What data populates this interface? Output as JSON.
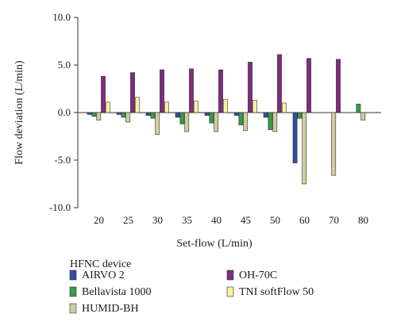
{
  "chart_data": {
    "type": "bar",
    "categories": [
      "20",
      "25",
      "30",
      "35",
      "40",
      "45",
      "50",
      "60",
      "70",
      "80"
    ],
    "xlabel": "Set-flow (L/min)",
    "ylabel": "Flow deviation (L/min)",
    "ylim": [
      -10,
      10
    ],
    "yticks": [
      "10.0",
      "5.0",
      "0.0",
      "-5.0",
      "-10.0"
    ],
    "ytick_values": [
      10,
      5,
      0,
      -5,
      -10
    ],
    "grid": false,
    "legend_title": "HFNC device",
    "legend_position": "bottom",
    "series": [
      {
        "name": "AIRVO 2",
        "color": "#2f4fa0",
        "values": [
          -0.2,
          -0.2,
          -0.3,
          -0.5,
          -0.3,
          -0.3,
          -0.5,
          -5.3,
          null,
          null
        ]
      },
      {
        "name": "Bellavista 1000",
        "color": "#3a9a46",
        "values": [
          -0.4,
          -0.5,
          -0.6,
          -1.2,
          -1.1,
          -1.3,
          -1.8,
          -0.6,
          null,
          0.9
        ]
      },
      {
        "name": "HUMID-BH",
        "color": "#cfcda0",
        "values": [
          -0.8,
          -1.0,
          -2.3,
          -2.0,
          -2.0,
          -1.9,
          -2.0,
          -7.5,
          -6.6,
          -0.8
        ]
      },
      {
        "name": "OH-70C",
        "color": "#7e2d80",
        "values": [
          3.8,
          4.2,
          4.5,
          4.6,
          4.5,
          5.3,
          6.1,
          5.7,
          5.6,
          null
        ]
      },
      {
        "name": "TNI softFlow 50",
        "color": "#f7f39a",
        "values": [
          1.1,
          1.6,
          1.1,
          1.2,
          1.4,
          1.3,
          1.0,
          null,
          null,
          null
        ]
      }
    ]
  }
}
